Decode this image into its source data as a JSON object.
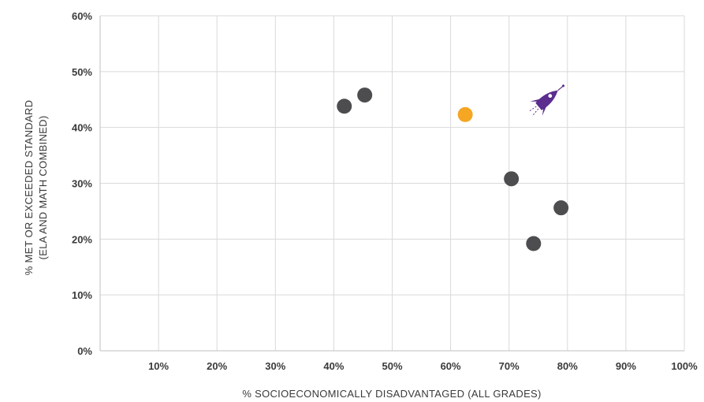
{
  "chart_data": {
    "type": "scatter",
    "xlabel": "% SOCIOECONOMICALLY DISADVANTAGED (ALL GRADES)",
    "ylabel_lines": [
      "% MET OR EXCEEDED STANDARD",
      "(ELA AND MATH COMBINED)"
    ],
    "xlim": [
      0,
      100
    ],
    "ylim": [
      0,
      60
    ],
    "x_ticks": [
      10,
      20,
      30,
      40,
      50,
      60,
      70,
      80,
      90,
      100
    ],
    "y_ticks": [
      0,
      10,
      20,
      30,
      40,
      50,
      60
    ],
    "x_tick_labels": [
      "10%",
      "20%",
      "30%",
      "40%",
      "50%",
      "60%",
      "70%",
      "80%",
      "90%",
      "100%"
    ],
    "y_tick_labels": [
      "0%",
      "10%",
      "20%",
      "30%",
      "40%",
      "50%",
      "60%"
    ],
    "grid": "vertical and horizontal",
    "points": [
      {
        "x": 41.8,
        "y": 43.8,
        "color": "#4d4d4f",
        "marker": "circle"
      },
      {
        "x": 45.3,
        "y": 45.8,
        "color": "#4d4d4f",
        "marker": "circle"
      },
      {
        "x": 62.5,
        "y": 42.3,
        "color": "#f5a623",
        "marker": "circle"
      },
      {
        "x": 70.4,
        "y": 30.8,
        "color": "#4d4d4f",
        "marker": "circle"
      },
      {
        "x": 74.2,
        "y": 19.2,
        "color": "#4d4d4f",
        "marker": "circle"
      },
      {
        "x": 78.9,
        "y": 25.6,
        "color": "#4d4d4f",
        "marker": "circle"
      },
      {
        "x": 76.5,
        "y": 45.0,
        "color": "#5b2d8e",
        "marker": "rocket-icon"
      }
    ]
  }
}
